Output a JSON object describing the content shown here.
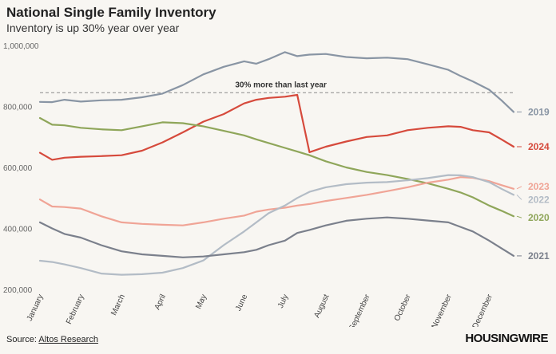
{
  "header": {
    "title": "National Single Family Inventory",
    "subtitle": "Inventory is up 30% year over year"
  },
  "footer": {
    "source_label": "Source: ",
    "source_link": "Altos Research",
    "brand": "HOUSINGWIRE"
  },
  "chart_data": {
    "type": "line",
    "title": "National Single Family Inventory",
    "subtitle": "Inventory is up 30% year over year",
    "xlabel": "",
    "ylabel": "",
    "x_ticks": [
      "January",
      "February",
      "March",
      "April",
      "May",
      "June",
      "July",
      "August",
      "September",
      "October",
      "November",
      "December"
    ],
    "y_ticks": [
      "200,000",
      "400,000",
      "600,000",
      "800,000",
      "1,000,000"
    ],
    "y_tick_values": [
      200000,
      400000,
      600000,
      800000,
      1000000
    ],
    "ylim": [
      200000,
      1000000
    ],
    "xlim": [
      0,
      11.6
    ],
    "grid": false,
    "reference_line": {
      "value": 845000,
      "label": "30% more than last year"
    },
    "series": [
      {
        "name": "2019",
        "color": "#8995a4",
        "x": [
          0,
          0.3,
          0.6,
          1,
          1.5,
          2,
          2.5,
          3,
          3.5,
          4,
          4.5,
          5,
          5.3,
          5.6,
          6,
          6.3,
          6.6,
          7,
          7.5,
          8,
          8.5,
          9,
          9.5,
          10,
          10.3,
          10.6,
          11,
          11.3,
          11.6
        ],
        "values": [
          815000,
          814000,
          822000,
          816000,
          820000,
          822000,
          830000,
          842000,
          870000,
          905000,
          930000,
          948000,
          940000,
          955000,
          978000,
          965000,
          970000,
          972000,
          962000,
          958000,
          960000,
          955000,
          938000,
          920000,
          900000,
          882000,
          855000,
          820000,
          782000
        ]
      },
      {
        "name": "2024",
        "color": "#d64a3c",
        "x": [
          0,
          0.3,
          0.6,
          1,
          1.5,
          2,
          2.5,
          3,
          3.5,
          4,
          4.5,
          5,
          5.3,
          5.6,
          6,
          6.3,
          6.6,
          7,
          7.5,
          8,
          8.5,
          9,
          9.5,
          10,
          10.3,
          10.6,
          11,
          11.3,
          11.6
        ],
        "values": [
          648000,
          625000,
          632000,
          635000,
          637000,
          640000,
          655000,
          682000,
          715000,
          750000,
          775000,
          810000,
          822000,
          828000,
          832000,
          838000,
          650000,
          668000,
          685000,
          700000,
          705000,
          722000,
          730000,
          735000,
          733000,
          722000,
          715000,
          692000,
          668000
        ]
      },
      {
        "name": "2020",
        "color": "#8fa65a",
        "x": [
          0,
          0.3,
          0.6,
          1,
          1.5,
          2,
          2.5,
          3,
          3.5,
          4,
          4.5,
          5,
          5.3,
          5.6,
          6,
          6.3,
          6.6,
          7,
          7.5,
          8,
          8.5,
          9,
          9.5,
          10,
          10.3,
          10.6,
          11,
          11.3,
          11.6
        ],
        "values": [
          762000,
          740000,
          738000,
          730000,
          725000,
          722000,
          735000,
          748000,
          745000,
          735000,
          720000,
          705000,
          692000,
          680000,
          664000,
          652000,
          640000,
          620000,
          600000,
          585000,
          575000,
          562000,
          548000,
          530000,
          518000,
          502000,
          475000,
          458000,
          440000
        ]
      },
      {
        "name": "2023",
        "color": "#f0a496",
        "x": [
          0,
          0.3,
          0.6,
          1,
          1.5,
          2,
          2.5,
          3,
          3.5,
          4,
          4.5,
          5,
          5.3,
          5.6,
          6,
          6.3,
          6.6,
          7,
          7.5,
          8,
          8.5,
          9,
          9.5,
          10,
          10.3,
          10.6,
          11,
          11.3,
          11.6
        ],
        "values": [
          495000,
          472000,
          470000,
          465000,
          440000,
          420000,
          415000,
          412000,
          410000,
          420000,
          432000,
          442000,
          455000,
          462000,
          468000,
          475000,
          480000,
          490000,
          500000,
          510000,
          522000,
          535000,
          550000,
          560000,
          568000,
          566000,
          555000,
          542000,
          530000
        ]
      },
      {
        "name": "2022",
        "color": "#b3bcc6",
        "x": [
          0,
          0.3,
          0.6,
          1,
          1.5,
          2,
          2.5,
          3,
          3.5,
          4,
          4.5,
          5,
          5.3,
          5.6,
          6,
          6.3,
          6.6,
          7,
          7.5,
          8,
          8.5,
          9,
          9.5,
          10,
          10.3,
          10.6,
          11,
          11.3,
          11.6
        ],
        "values": [
          294000,
          290000,
          282000,
          270000,
          252000,
          248000,
          250000,
          255000,
          270000,
          295000,
          345000,
          390000,
          420000,
          450000,
          475000,
          500000,
          520000,
          535000,
          545000,
          550000,
          552000,
          558000,
          565000,
          575000,
          574000,
          568000,
          552000,
          530000,
          510000
        ]
      },
      {
        "name": "2021",
        "color": "#7b808c",
        "x": [
          0,
          0.3,
          0.6,
          1,
          1.5,
          2,
          2.5,
          3,
          3.5,
          4,
          4.5,
          5,
          5.3,
          5.6,
          6,
          6.3,
          6.6,
          7,
          7.5,
          8,
          8.5,
          9,
          9.5,
          10,
          10.3,
          10.6,
          11,
          11.3,
          11.6
        ],
        "values": [
          420000,
          400000,
          382000,
          370000,
          345000,
          325000,
          315000,
          310000,
          305000,
          308000,
          315000,
          322000,
          330000,
          345000,
          360000,
          385000,
          395000,
          410000,
          425000,
          432000,
          436000,
          432000,
          426000,
          420000,
          405000,
          390000,
          360000,
          335000,
          310000
        ]
      }
    ]
  }
}
